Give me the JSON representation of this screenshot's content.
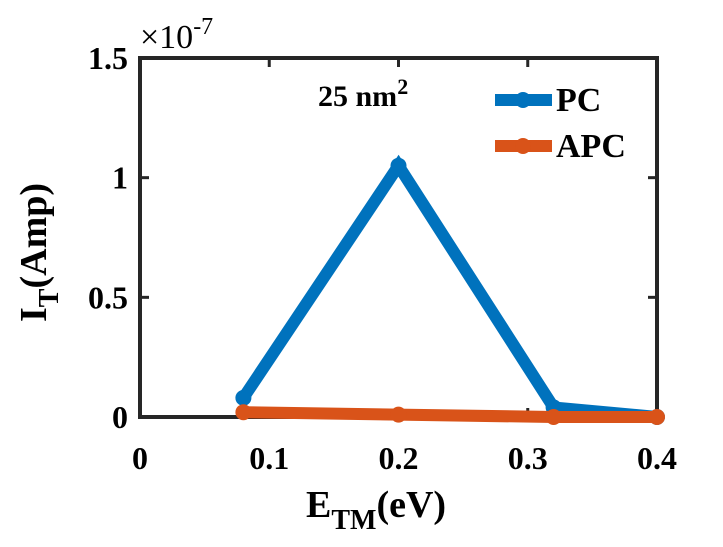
{
  "chart_data": {
    "type": "line",
    "x": [
      0.08,
      0.2,
      0.32,
      0.4
    ],
    "series": [
      {
        "name": "PC",
        "values": [
          0.08,
          1.05,
          0.04,
          0.0
        ],
        "color": "#0072BD"
      },
      {
        "name": "APC",
        "values": [
          0.02,
          0.01,
          0.0,
          0.0
        ],
        "color": "#D95319"
      }
    ],
    "xlim": [
      0,
      0.4
    ],
    "ylim": [
      0,
      1.5
    ],
    "xticks": [
      0,
      0.1,
      0.2,
      0.3,
      0.4
    ],
    "xtick_labels": [
      "0",
      "0.1",
      "0.2",
      "0.3",
      "0.4"
    ],
    "yticks": [
      0,
      0.5,
      1,
      1.5
    ],
    "ytick_labels": [
      "0",
      "0.5",
      "1",
      "1.5"
    ],
    "y_exponent": {
      "base": "×10",
      "power": "-7"
    },
    "xlabel": {
      "main": "E",
      "sub": "TM",
      "rest": "(eV)"
    },
    "ylabel": {
      "main": "I",
      "sub": "T",
      "rest": "(Amp)"
    },
    "annotation": {
      "text": "25 nm",
      "sup": "2"
    },
    "legend_position": "top-right",
    "grid": false
  }
}
